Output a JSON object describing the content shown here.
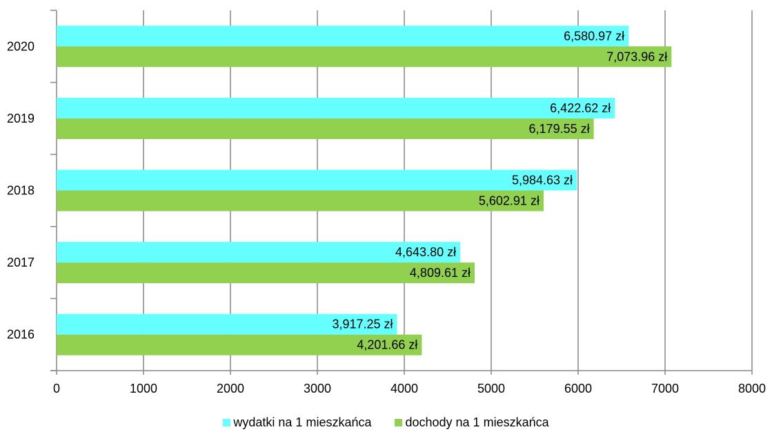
{
  "chart_data": {
    "type": "bar",
    "orientation": "horizontal",
    "categories": [
      "2020",
      "2019",
      "2018",
      "2017",
      "2016"
    ],
    "series": [
      {
        "name": "wydatki na 1 mieszkańca",
        "color": "#66ffff",
        "values": [
          6580.97,
          6422.62,
          5984.63,
          4643.8,
          3917.25
        ],
        "labels": [
          "6,580.97 zł",
          "6,422.62 zł",
          "5,984.63 zł",
          "4,643.80 zł",
          "3,917.25 zł"
        ]
      },
      {
        "name": "dochody na 1 mieszkańca",
        "color": "#92d050",
        "values": [
          7073.96,
          6179.55,
          5602.91,
          4809.61,
          4201.66
        ],
        "labels": [
          "7,073.96 zł",
          "6,179.55 zł",
          "5,602.91 zł",
          "4,809.61 zł",
          "4,201.66 zł"
        ]
      }
    ],
    "xlim": [
      0,
      8000
    ],
    "xticks": [
      "0",
      "1000",
      "2000",
      "3000",
      "4000",
      "5000",
      "6000",
      "7000",
      "8000"
    ],
    "grid": true,
    "legend_position": "bottom"
  }
}
